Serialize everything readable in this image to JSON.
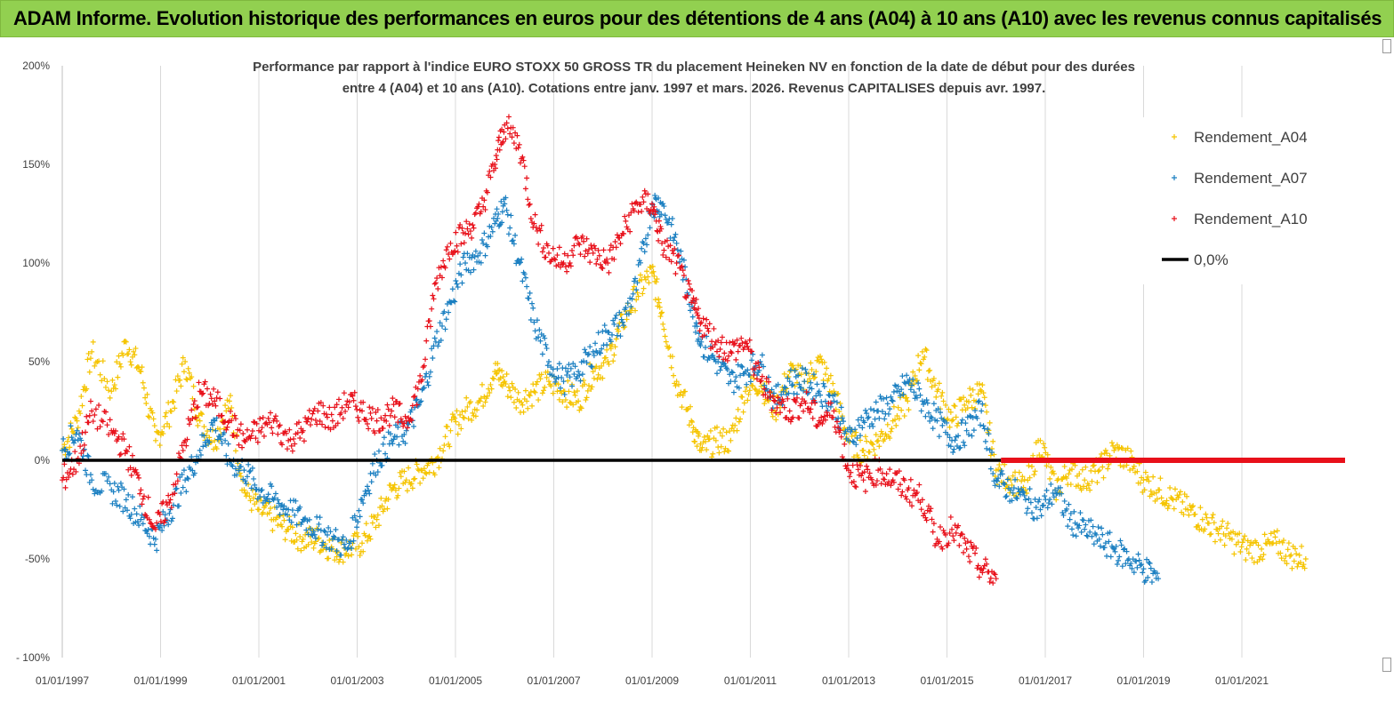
{
  "banner": {
    "title": "ADAM Informe. Evolution historique des performances en euros pour des détentions de 4 ans (A04) à 10 ans (A10) avec les revenus connus capitalisés",
    "color": "#92d050"
  },
  "chart_data": {
    "type": "scatter",
    "title": "Performance par rapport à l'indice EURO STOXX 50 GROSS TR  du placement Heineken NV en fonction de la date de début pour des durées",
    "subtitle": "entre 4 (A04) et 10 ans (A10). Cotations entre janv. 1997 et mars. 2026. Revenus CAPITALISES depuis avr. 1997.",
    "xlabel": "",
    "ylabel": "",
    "x_range": [
      1997.0,
      2023.1
    ],
    "ylim": [
      -100,
      200
    ],
    "y_ticks": [
      -100,
      -50,
      0,
      50,
      100,
      150,
      200
    ],
    "y_tick_labels": [
      "- 100%",
      "-50%",
      "0%",
      "50%",
      "100%",
      "150%",
      "200%"
    ],
    "x_ticks": [
      1997,
      1999,
      2001,
      2003,
      2005,
      2007,
      2009,
      2011,
      2013,
      2015,
      2017,
      2019,
      2021
    ],
    "x_tick_labels": [
      "01/01/1997",
      "01/01/1999",
      "01/01/2001",
      "01/01/2003",
      "01/01/2005",
      "01/01/2007",
      "01/01/2009",
      "01/01/2011",
      "01/01/2013",
      "01/01/2015",
      "01/01/2017",
      "01/01/2019",
      "01/01/2021"
    ],
    "grid": "vertical",
    "legend_position": "right",
    "series": [
      {
        "name": "Rendement_A04",
        "color": "#f5c400",
        "marker": "+",
        "x": [
          1997.0,
          1997.3,
          1997.6,
          1998.0,
          1998.3,
          1998.6,
          1998.9,
          1999.2,
          1999.5,
          1999.8,
          2000.1,
          2000.4,
          2000.7,
          2001.0,
          2001.3,
          2001.6,
          2001.9,
          2002.2,
          2002.5,
          2002.8,
          2003.1,
          2003.4,
          2003.7,
          2004.0,
          2004.3,
          2004.6,
          2004.9,
          2005.2,
          2005.5,
          2005.8,
          2006.0,
          2006.3,
          2006.6,
          2006.9,
          2007.2,
          2007.5,
          2007.8,
          2008.1,
          2008.4,
          2008.7,
          2009.0,
          2009.2,
          2009.5,
          2009.8,
          2010.0,
          2010.3,
          2010.6,
          2010.9,
          2011.2,
          2011.5,
          2011.8,
          2012.1,
          2012.4,
          2012.7,
          2013.0,
          2013.3,
          2013.6,
          2013.9,
          2014.2,
          2014.5,
          2014.8,
          2015.1,
          2015.4,
          2015.7,
          2016.0,
          2016.3,
          2016.6,
          2016.9,
          2017.2,
          2017.5,
          2017.8,
          2018.1,
          2018.4,
          2018.7,
          2019.0,
          2019.3,
          2019.6,
          2019.9,
          2020.2,
          2020.5,
          2020.8,
          2021.1,
          2021.4,
          2021.7,
          2022.0,
          2022.3
        ],
        "y": [
          5,
          20,
          55,
          35,
          60,
          45,
          10,
          25,
          50,
          20,
          10,
          30,
          -15,
          -25,
          -30,
          -35,
          -40,
          -40,
          -45,
          -45,
          -42,
          -30,
          -15,
          -10,
          -5,
          0,
          15,
          25,
          30,
          45,
          40,
          30,
          35,
          40,
          35,
          30,
          45,
          50,
          70,
          85,
          95,
          75,
          40,
          20,
          5,
          10,
          10,
          35,
          40,
          25,
          45,
          40,
          50,
          35,
          10,
          5,
          10,
          20,
          30,
          55,
          35,
          20,
          30,
          35,
          -5,
          -10,
          -15,
          10,
          -15,
          -5,
          -10,
          -5,
          5,
          0,
          -10,
          -15,
          -20,
          -25,
          -30,
          -35,
          -40,
          -45,
          -45,
          -42,
          -48,
          -50
        ]
      },
      {
        "name": "Rendement_A07",
        "color": "#1a7fc1",
        "marker": "+",
        "x": [
          1997.0,
          1997.3,
          1997.6,
          1998.0,
          1998.3,
          1998.6,
          1998.9,
          1999.2,
          1999.5,
          1999.8,
          2000.1,
          2000.4,
          2000.7,
          2001.0,
          2001.3,
          2001.6,
          2001.9,
          2002.2,
          2002.5,
          2002.8,
          2003.1,
          2003.4,
          2003.7,
          2004.0,
          2004.3,
          2004.6,
          2004.9,
          2005.2,
          2005.5,
          2005.8,
          2006.0,
          2006.3,
          2006.6,
          2006.9,
          2007.2,
          2007.5,
          2007.8,
          2008.1,
          2008.4,
          2008.7,
          2009.0,
          2009.2,
          2009.5,
          2009.8,
          2010.0,
          2010.3,
          2010.6,
          2010.9,
          2011.2,
          2011.5,
          2011.8,
          2012.1,
          2012.4,
          2012.7,
          2013.0,
          2013.3,
          2013.6,
          2013.9,
          2014.2,
          2014.5,
          2014.8,
          2015.1,
          2015.4,
          2015.7,
          2016.0,
          2016.3,
          2016.6,
          2016.9,
          2017.2,
          2017.5,
          2017.8,
          2018.1,
          2018.4,
          2018.7,
          2019.0,
          2019.3
        ],
        "y": [
          5,
          15,
          -10,
          -15,
          -20,
          -30,
          -40,
          -25,
          -10,
          5,
          20,
          0,
          -5,
          -15,
          -20,
          -25,
          -30,
          -35,
          -40,
          -45,
          -20,
          0,
          10,
          15,
          30,
          60,
          80,
          100,
          105,
          120,
          130,
          100,
          70,
          50,
          40,
          45,
          55,
          65,
          70,
          90,
          130,
          130,
          110,
          80,
          60,
          50,
          40,
          45,
          50,
          30,
          40,
          40,
          35,
          30,
          10,
          20,
          25,
          30,
          40,
          30,
          20,
          10,
          15,
          25,
          -10,
          -15,
          -20,
          -25,
          -15,
          -30,
          -35,
          -40,
          -45,
          -50,
          -55,
          -60
        ]
      },
      {
        "name": "Rendement_A10",
        "color": "#e8101a",
        "marker": "+",
        "x": [
          1997.0,
          1997.3,
          1997.6,
          1998.0,
          1998.3,
          1998.6,
          1998.9,
          1999.2,
          1999.5,
          1999.8,
          2000.1,
          2000.4,
          2000.7,
          2001.0,
          2001.3,
          2001.6,
          2001.9,
          2002.2,
          2002.5,
          2002.8,
          2003.1,
          2003.4,
          2003.7,
          2004.0,
          2004.3,
          2004.6,
          2004.9,
          2005.2,
          2005.5,
          2005.8,
          2006.0,
          2006.3,
          2006.6,
          2006.9,
          2007.2,
          2007.5,
          2007.8,
          2008.1,
          2008.4,
          2008.7,
          2009.0,
          2009.2,
          2009.5,
          2009.8,
          2010.0,
          2010.3,
          2010.6,
          2010.9,
          2011.2,
          2011.5,
          2011.8,
          2012.1,
          2012.4,
          2012.7,
          2013.0,
          2013.3,
          2013.6,
          2013.9,
          2014.2,
          2014.5,
          2014.8,
          2015.1,
          2015.4,
          2015.7,
          2016.0
        ],
        "y": [
          -10,
          0,
          25,
          15,
          5,
          -15,
          -35,
          -20,
          10,
          35,
          30,
          20,
          10,
          15,
          20,
          10,
          15,
          25,
          20,
          30,
          25,
          20,
          25,
          20,
          40,
          90,
          110,
          115,
          125,
          150,
          170,
          160,
          120,
          105,
          100,
          110,
          105,
          100,
          115,
          130,
          130,
          110,
          100,
          80,
          70,
          60,
          55,
          60,
          40,
          30,
          25,
          30,
          20,
          25,
          -5,
          -10,
          -5,
          -10,
          -15,
          -20,
          -40,
          -35,
          -45,
          -55,
          -60
        ]
      },
      {
        "name": "0,0%",
        "color": "#000000",
        "marker": "line",
        "x": [
          1997.0,
          2016.1
        ],
        "y": [
          0,
          0
        ]
      }
    ],
    "zero_tail": {
      "name": "Rendement_A10",
      "color": "#e8101a",
      "x": [
        2016.1,
        2023.1
      ],
      "y": [
        0,
        0
      ]
    }
  }
}
